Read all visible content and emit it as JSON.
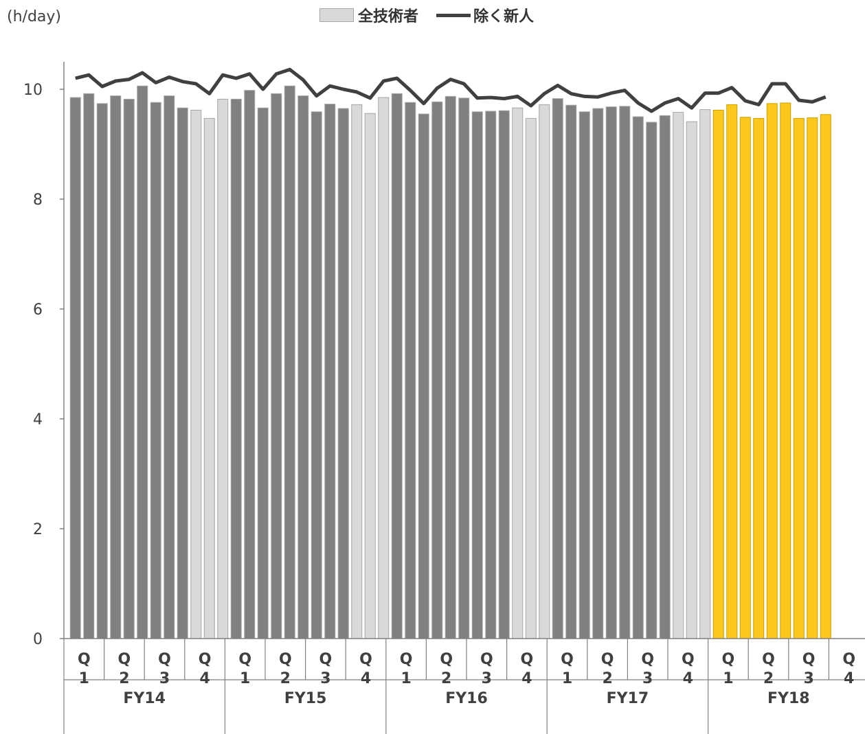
{
  "chart_data": {
    "type": "bar",
    "unit_label": "(h/day)",
    "legend": {
      "placement": "top-center",
      "entries": [
        "全技術者",
        "除く新人"
      ]
    },
    "ylim": [
      0,
      10.5
    ],
    "y_ticks": [
      "0",
      "2",
      "4",
      "6",
      "8",
      "10"
    ],
    "grid": false,
    "colors": {
      "bar_dark": "#808080",
      "bar_light": "#d9d9d9",
      "bar_highlight": "#fcc81e",
      "bar_outline": "#a6a6a6",
      "line": "#404040"
    },
    "quarter_labels": [
      "Q1",
      "Q2",
      "Q3",
      "Q4",
      "Q1",
      "Q2",
      "Q3",
      "Q4",
      "Q1",
      "Q2",
      "Q3",
      "Q4",
      "Q1",
      "Q2",
      "Q3",
      "Q4",
      "Q1",
      "Q2",
      "Q3",
      "Q4"
    ],
    "fiscal_years": [
      "FY14",
      "FY15",
      "FY16",
      "FY17",
      "FY18"
    ],
    "series": [
      {
        "name": "全技術者",
        "values": [
          9.85,
          9.92,
          9.74,
          9.88,
          9.82,
          10.06,
          9.76,
          9.88,
          9.66,
          9.62,
          9.47,
          9.82,
          9.82,
          9.98,
          9.66,
          9.92,
          10.06,
          9.88,
          9.59,
          9.73,
          9.65,
          9.72,
          9.56,
          9.85,
          9.92,
          9.76,
          9.55,
          9.77,
          9.87,
          9.84,
          9.59,
          9.6,
          9.61,
          9.66,
          9.47,
          9.72,
          9.83,
          9.71,
          9.59,
          9.65,
          9.68,
          9.69,
          9.5,
          9.4,
          9.52,
          9.58,
          9.41,
          9.63,
          9.62,
          9.72,
          9.49,
          9.47,
          9.74,
          9.75,
          9.47,
          9.48,
          9.54
        ]
      },
      {
        "name": "除く新人",
        "values": [
          10.2,
          10.26,
          10.05,
          10.15,
          10.18,
          10.3,
          10.12,
          10.22,
          10.14,
          10.1,
          9.92,
          10.26,
          10.2,
          10.28,
          10.0,
          10.28,
          10.36,
          10.17,
          9.88,
          10.06,
          10.0,
          9.95,
          9.84,
          10.15,
          10.2,
          9.98,
          9.74,
          10.02,
          10.18,
          10.1,
          9.84,
          9.85,
          9.83,
          9.87,
          9.7,
          9.92,
          10.07,
          9.92,
          9.87,
          9.86,
          9.93,
          9.98,
          9.75,
          9.6,
          9.75,
          9.83,
          9.66,
          9.93,
          9.93,
          10.03,
          9.79,
          9.72,
          10.1,
          10.1,
          9.8,
          9.77,
          9.86
        ]
      }
    ]
  }
}
